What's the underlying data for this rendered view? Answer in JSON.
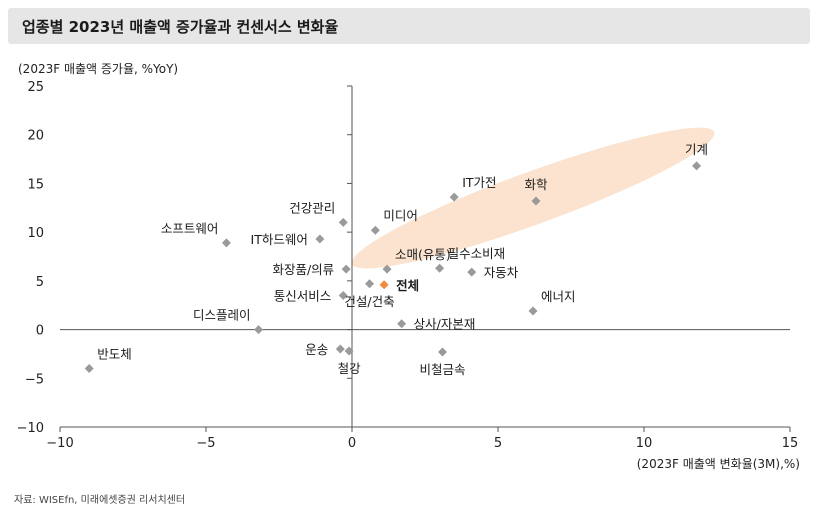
{
  "header": {
    "title": "업종별 2023년 매출액 증가율과 컨센서스 변화율"
  },
  "footer": {
    "source": "자료: WISEfn, 미래에셋증권 리서치센터"
  },
  "chart_data": {
    "type": "scatter",
    "title": "업종별 2023년 매출액 증가율과 컨센서스 변화율",
    "xlabel": "(2023F 매출액 변화율(3M),%)",
    "ylabel": "(2023F 매출액 증가율, %YoY)",
    "xlim": [
      -10,
      15
    ],
    "ylim": [
      -10,
      25
    ],
    "xticks": [
      -10,
      -5,
      0,
      5,
      10,
      15
    ],
    "yticks": [
      -10,
      -5,
      0,
      5,
      10,
      15,
      20,
      25
    ],
    "xtick_labels": [
      "−10",
      "−5",
      "0",
      "5",
      "10",
      "15"
    ],
    "ytick_labels": [
      "−10",
      "−5",
      "0",
      "5",
      "10",
      "15",
      "20",
      "25"
    ],
    "grid": false,
    "colors": {
      "point": "#9a9a9a",
      "highlight": "#f08a3c",
      "ellipse": "#fbe3cf",
      "axis": "#555555"
    },
    "highlight_ellipse": {
      "cx": 6.2,
      "cy": 13.5,
      "rx": 6.6,
      "ry": 2.7,
      "angle_deg": -20
    },
    "points": [
      {
        "name": "기계",
        "x": 11.8,
        "y": 16.8,
        "label_pos": "above"
      },
      {
        "name": "화학",
        "x": 6.3,
        "y": 13.2,
        "label_pos": "above"
      },
      {
        "name": "IT가전",
        "x": 3.5,
        "y": 13.6,
        "label_pos": "above-right"
      },
      {
        "name": "미디어",
        "x": 0.8,
        "y": 10.2,
        "label_pos": "above-right"
      },
      {
        "name": "건강관리",
        "x": -0.3,
        "y": 11.0,
        "label_pos": "above-left"
      },
      {
        "name": "소프트웨어",
        "x": -4.3,
        "y": 8.9,
        "label_pos": "above-left"
      },
      {
        "name": "IT하드웨어",
        "x": -1.1,
        "y": 9.3,
        "label_pos": "left"
      },
      {
        "name": "화장품/의류",
        "x": -0.2,
        "y": 6.2,
        "label_pos": "left"
      },
      {
        "name": "소매(유통)",
        "x": 1.2,
        "y": 6.2,
        "label_pos": "above-right"
      },
      {
        "name": "필수소비재",
        "x": 3.0,
        "y": 6.3,
        "label_pos": "above-right"
      },
      {
        "name": "자동차",
        "x": 4.1,
        "y": 5.9,
        "label_pos": "right"
      },
      {
        "name": "통신서비스",
        "x": -0.3,
        "y": 3.5,
        "label_pos": "left"
      },
      {
        "name": "전체",
        "x": 1.1,
        "y": 4.6,
        "label_pos": "right",
        "highlight": true
      },
      {
        "name": "건설/건축",
        "x": 0.6,
        "y": 4.7,
        "label_pos": "below"
      },
      {
        "name": "에너지",
        "x": 6.2,
        "y": 1.9,
        "label_pos": "above-right"
      },
      {
        "name": "상사/자본재",
        "x": 1.7,
        "y": 0.6,
        "label_pos": "right"
      },
      {
        "name": "디스플레이",
        "x": -3.2,
        "y": 0.0,
        "label_pos": "above-left"
      },
      {
        "name": "운송",
        "x": -0.4,
        "y": -2.0,
        "label_pos": "left"
      },
      {
        "name": "철강",
        "x": -0.1,
        "y": -2.2,
        "label_pos": "below"
      },
      {
        "name": "비철금속",
        "x": 3.1,
        "y": -2.3,
        "label_pos": "below"
      },
      {
        "name": "반도체",
        "x": -9.0,
        "y": -4.0,
        "label_pos": "above-right"
      }
    ]
  }
}
